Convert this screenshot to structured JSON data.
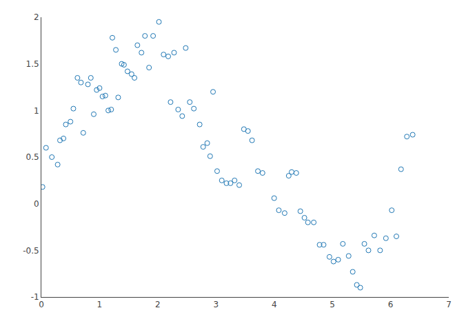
{
  "chart_data": {
    "type": "scatter",
    "x": [
      0.02,
      0.08,
      0.18,
      0.28,
      0.32,
      0.38,
      0.42,
      0.5,
      0.55,
      0.62,
      0.68,
      0.72,
      0.8,
      0.85,
      0.9,
      0.95,
      1.0,
      1.05,
      1.1,
      1.15,
      1.2,
      1.22,
      1.28,
      1.32,
      1.38,
      1.42,
      1.48,
      1.55,
      1.6,
      1.65,
      1.72,
      1.78,
      1.85,
      1.92,
      2.02,
      2.1,
      2.18,
      2.22,
      2.28,
      2.35,
      2.42,
      2.48,
      2.55,
      2.62,
      2.72,
      2.78,
      2.85,
      2.9,
      2.95,
      3.02,
      3.1,
      3.18,
      3.25,
      3.32,
      3.4,
      3.48,
      3.55,
      3.62,
      3.72,
      3.8,
      4.0,
      4.08,
      4.18,
      4.25,
      4.3,
      4.38,
      4.45,
      4.52,
      4.58,
      4.68,
      4.78,
      4.85,
      4.95,
      5.02,
      5.1,
      5.18,
      5.28,
      5.35,
      5.42,
      5.48,
      5.55,
      5.62,
      5.72,
      5.82,
      5.92,
      6.02,
      6.1,
      6.18,
      6.28,
      6.38
    ],
    "values": [
      0.18,
      0.6,
      0.5,
      0.42,
      0.68,
      0.7,
      0.85,
      0.88,
      1.02,
      1.35,
      1.3,
      0.76,
      1.28,
      1.35,
      0.96,
      1.22,
      1.24,
      1.15,
      1.16,
      1.0,
      1.01,
      1.78,
      1.65,
      1.14,
      1.5,
      1.49,
      1.42,
      1.39,
      1.35,
      1.7,
      1.62,
      1.8,
      1.46,
      1.8,
      1.95,
      1.6,
      1.58,
      1.09,
      1.62,
      1.01,
      0.94,
      1.67,
      1.09,
      1.02,
      0.85,
      0.61,
      0.65,
      0.51,
      1.2,
      0.35,
      0.25,
      0.22,
      0.22,
      0.25,
      0.2,
      0.8,
      0.78,
      0.68,
      0.35,
      0.33,
      0.06,
      -0.07,
      -0.1,
      0.3,
      0.34,
      0.33,
      -0.08,
      -0.15,
      -0.2,
      -0.2,
      -0.44,
      -0.44,
      -0.57,
      -0.62,
      -0.6,
      -0.43,
      -0.56,
      -0.73,
      -0.87,
      -0.9,
      -0.43,
      -0.5,
      -0.34,
      -0.5,
      -0.37,
      -0.07,
      -0.35,
      0.37,
      0.72,
      0.74
    ],
    "color": "#1f77b4",
    "marker": "open circle",
    "xlim": [
      0,
      7
    ],
    "ylim": [
      -1,
      2
    ],
    "xticks": [
      0,
      1,
      2,
      3,
      4,
      5,
      6,
      7
    ],
    "yticks": [
      -1,
      -0.5,
      0,
      0.5,
      1,
      1.5,
      2
    ],
    "grid": false
  }
}
